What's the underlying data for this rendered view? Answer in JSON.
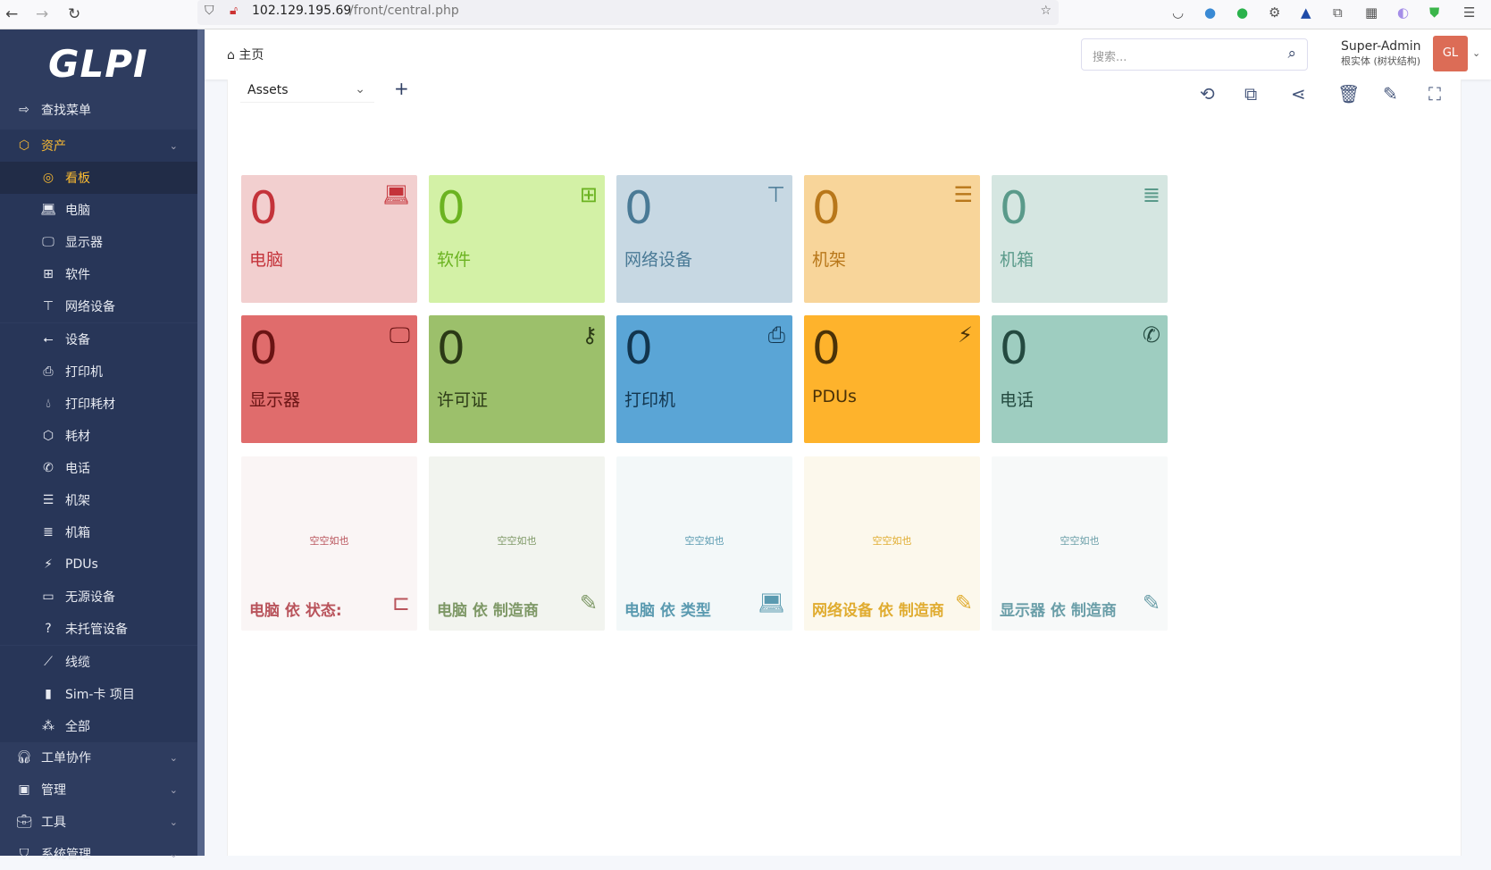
{
  "browser": {
    "url_host": "102.129.195.69",
    "url_path": "/front/central.php"
  },
  "sidebar": {
    "logo": "GLPI",
    "find_menu": "查找菜单",
    "assets": "资产",
    "asset_items": [
      {
        "label": "看板",
        "icon": "dashboard-icon"
      },
      {
        "label": "电脑",
        "icon": "laptop-icon"
      },
      {
        "label": "显示器",
        "icon": "monitor-icon"
      },
      {
        "label": "软件",
        "icon": "apps-icon"
      },
      {
        "label": "网络设备",
        "icon": "network-icon"
      },
      {
        "label": "设备",
        "icon": "usb-icon"
      },
      {
        "label": "打印机",
        "icon": "printer-icon"
      },
      {
        "label": "打印耗材",
        "icon": "droplet-icon"
      },
      {
        "label": "耗材",
        "icon": "package-icon"
      },
      {
        "label": "电话",
        "icon": "phone-icon"
      },
      {
        "label": "机架",
        "icon": "server-icon"
      },
      {
        "label": "机箱",
        "icon": "list-icon"
      },
      {
        "label": "PDUs",
        "icon": "plug-icon"
      },
      {
        "label": "无源设备",
        "icon": "box-icon"
      },
      {
        "label": "未托管设备",
        "icon": "question-icon"
      },
      {
        "label": "线缆",
        "icon": "cable-icon"
      },
      {
        "label": "Sim-卡 项目",
        "icon": "sim-icon"
      },
      {
        "label": "全部",
        "icon": "circles-icon"
      }
    ],
    "sections": [
      {
        "label": "工单协作",
        "icon": "headset-icon"
      },
      {
        "label": "管理",
        "icon": "wallet-icon"
      },
      {
        "label": "工具",
        "icon": "briefcase-icon"
      },
      {
        "label": "系统管理",
        "icon": "shield-icon"
      }
    ]
  },
  "header": {
    "breadcrumb": "主页",
    "search_placeholder": "搜索...",
    "user_name": "Super-Admin",
    "entity": "根实体 (树状结构)",
    "avatar": "GL"
  },
  "dashboard": {
    "selected": "Assets",
    "counters": [
      {
        "value": "0",
        "label": "电脑",
        "bg": "#f2cfcf",
        "fg": "#c4333a",
        "icon": "laptop-icon"
      },
      {
        "value": "0",
        "label": "软件",
        "bg": "#d3f1a6",
        "fg": "#6bb321",
        "icon": "apps-icon"
      },
      {
        "value": "0",
        "label": "网络设备",
        "bg": "#c7d8e3",
        "fg": "#4a7a96",
        "icon": "network-icon"
      },
      {
        "value": "0",
        "label": "机架",
        "bg": "#f8d59a",
        "fg": "#b8771a",
        "icon": "server-icon"
      },
      {
        "value": "0",
        "label": "机箱",
        "bg": "#d5e6e1",
        "fg": "#5a9a8a",
        "icon": "list-icon"
      },
      {
        "value": "0",
        "label": "显示器",
        "bg": "#e06c6c",
        "fg": "#6a1414",
        "icon": "monitor-icon"
      },
      {
        "value": "0",
        "label": "许可证",
        "bg": "#9cc06b",
        "fg": "#2b3a16",
        "icon": "key-icon"
      },
      {
        "value": "0",
        "label": "打印机",
        "bg": "#5aa5d6",
        "fg": "#12354e",
        "icon": "printer-icon"
      },
      {
        "value": "0",
        "label": "PDUs",
        "bg": "#feb32c",
        "fg": "#4a3208",
        "icon": "plug-icon"
      },
      {
        "value": "0",
        "label": "电话",
        "bg": "#9ecdc0",
        "fg": "#244a40",
        "icon": "phone-icon"
      }
    ],
    "graphs": [
      {
        "empty": "空空如也",
        "label": "电脑 依 状态:",
        "bg": "#faf5f5",
        "fg": "#b9545c",
        "icon": "hierarchy-icon"
      },
      {
        "empty": "空空如也",
        "label": "电脑 依 制造商",
        "bg": "#f2f4ef",
        "fg": "#7e9866",
        "icon": "edit-icon"
      },
      {
        "empty": "空空如也",
        "label": "电脑 依 类型",
        "bg": "#f3f8f9",
        "fg": "#5a9ab0",
        "icon": "laptop-icon"
      },
      {
        "empty": "空空如也",
        "label": "网络设备 依 制造商",
        "bg": "#fcf8ec",
        "fg": "#e0ac30",
        "icon": "edit-icon"
      },
      {
        "empty": "空空如也",
        "label": "显示器 依 制造商",
        "bg": "#f7f9f9",
        "fg": "#6a9ea8",
        "icon": "edit-icon"
      }
    ]
  }
}
